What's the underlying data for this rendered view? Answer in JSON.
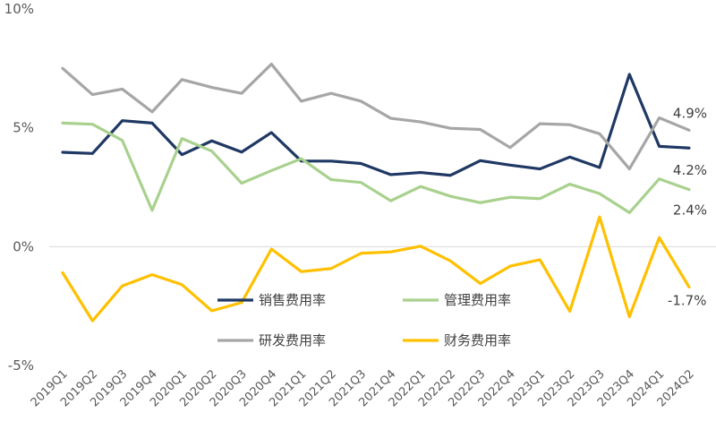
{
  "chart_data": {
    "type": "line",
    "x": [
      "2019Q1",
      "2019Q2",
      "2019Q3",
      "2019Q4",
      "2020Q1",
      "2020Q2",
      "2020Q3",
      "2020Q4",
      "2021Q1",
      "2021Q2",
      "2021Q3",
      "2021Q4",
      "2022Q1",
      "2022Q2",
      "2022Q3",
      "2022Q4",
      "2023Q1",
      "2023Q2",
      "2023Q3",
      "2023Q4",
      "2024Q1",
      "2024Q2"
    ],
    "ylim": [
      -5,
      10
    ],
    "yticks": [
      -5,
      0,
      5,
      10
    ],
    "ytick_labels": [
      "-5%",
      "0%",
      "5%",
      "10%"
    ],
    "grid": false,
    "legend_position": "center",
    "series": [
      {
        "name": "销售费用率",
        "color": "#1F3864",
        "values": [
          3.97,
          3.92,
          5.3,
          5.2,
          3.87,
          4.45,
          3.98,
          4.8,
          3.6,
          3.6,
          3.5,
          3.03,
          3.12,
          3.0,
          3.62,
          3.43,
          3.27,
          3.77,
          3.33,
          7.25,
          4.22,
          4.15
        ],
        "end_label": "4.2%"
      },
      {
        "name": "管理费用率",
        "color": "#A9D18E",
        "values": [
          5.2,
          5.15,
          4.47,
          1.53,
          4.55,
          4.02,
          2.67,
          3.2,
          3.7,
          2.82,
          2.7,
          1.93,
          2.53,
          2.12,
          1.85,
          2.08,
          2.02,
          2.63,
          2.23,
          1.43,
          2.85,
          2.4
        ],
        "end_label": "2.4%"
      },
      {
        "name": "研发费用率",
        "color": "#A6A6A6",
        "values": [
          7.5,
          6.4,
          6.63,
          5.67,
          7.03,
          6.7,
          6.45,
          7.68,
          6.12,
          6.45,
          6.12,
          5.4,
          5.25,
          4.98,
          4.93,
          4.17,
          5.17,
          5.13,
          4.75,
          3.27,
          5.42,
          4.9
        ],
        "end_label": "4.9%"
      },
      {
        "name": "财务费用率",
        "color": "#FFC000",
        "values": [
          -1.1,
          -3.12,
          -1.65,
          -1.18,
          -1.6,
          -2.7,
          -2.35,
          -0.1,
          -1.05,
          -0.92,
          -0.28,
          -0.22,
          0.02,
          -0.6,
          -1.55,
          -0.82,
          -0.55,
          -2.72,
          1.25,
          -2.95,
          0.38,
          -1.7
        ],
        "end_label": "-1.7%"
      }
    ]
  }
}
